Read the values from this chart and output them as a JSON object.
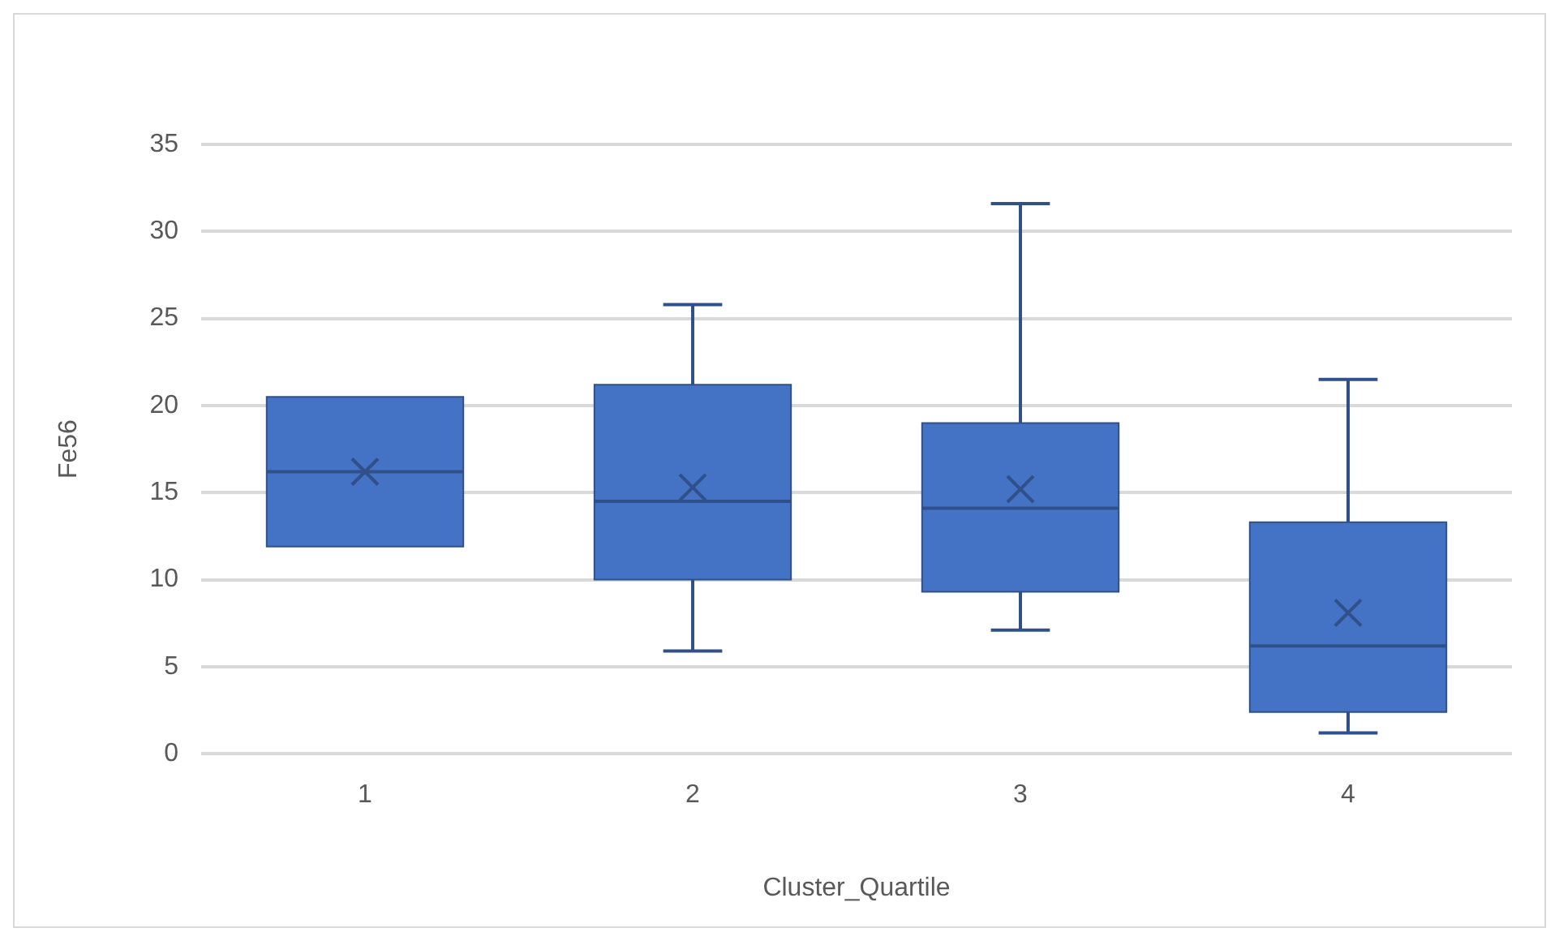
{
  "chart_data": {
    "type": "box",
    "xlabel": "Cluster_Quartile",
    "ylabel": "Fe56",
    "categories": [
      "1",
      "2",
      "3",
      "4"
    ],
    "color": "#4472c4",
    "boxes": [
      {
        "low": 11.9,
        "q1": 11.9,
        "median": 16.2,
        "q3": 20.5,
        "high": 20.5,
        "mean": 16.2
      },
      {
        "low": 5.9,
        "q1": 10.0,
        "median": 14.5,
        "q3": 21.2,
        "high": 25.8,
        "mean": 15.3
      },
      {
        "low": 7.1,
        "q1": 9.3,
        "median": 14.1,
        "q3": 19.0,
        "high": 31.6,
        "mean": 15.2
      },
      {
        "low": 1.2,
        "q1": 2.4,
        "median": 6.2,
        "q3": 13.3,
        "high": 21.5,
        "mean": 8.1
      }
    ],
    "ylim": [
      0,
      35
    ],
    "yticks": [
      0,
      5,
      10,
      15,
      20,
      25,
      30,
      35
    ],
    "grid": "y"
  }
}
